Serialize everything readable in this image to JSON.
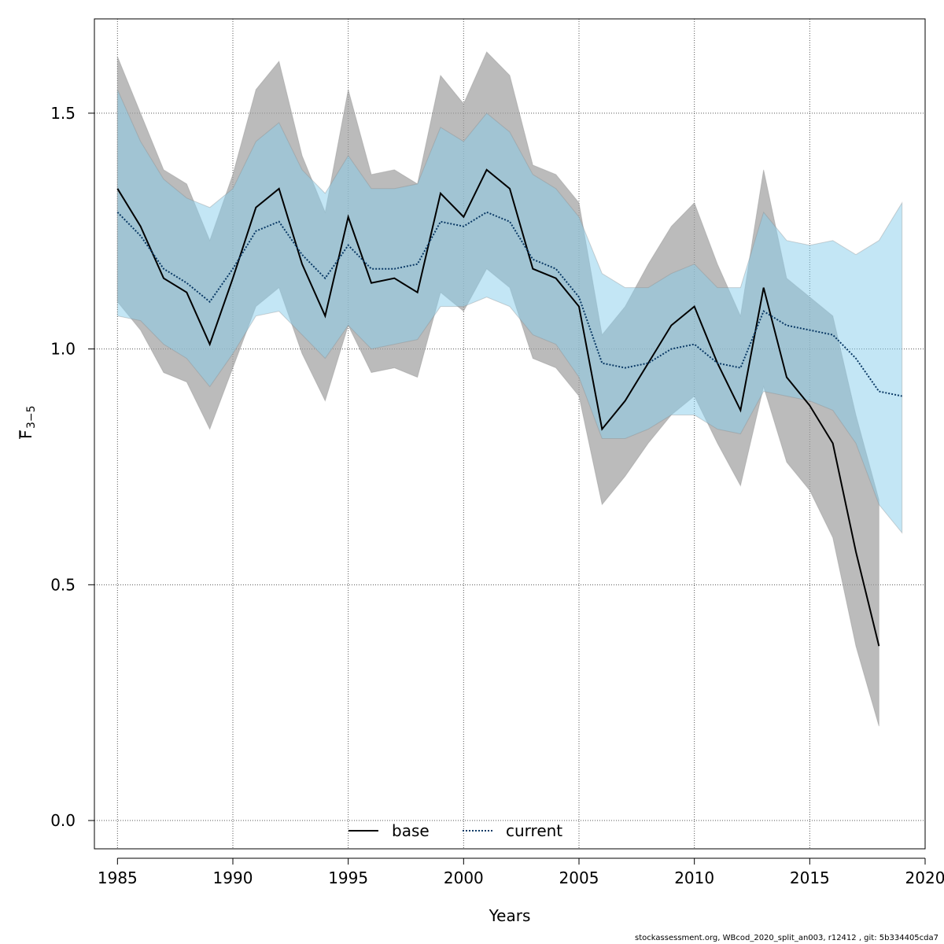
{
  "chart_data": {
    "type": "line",
    "xlabel": "Years",
    "ylabel": "F",
    "ylabel_sub": "3−5",
    "xlim": [
      1984,
      2020
    ],
    "ylim": [
      -0.06,
      1.7
    ],
    "x_ticks": [
      1985,
      1990,
      1995,
      2000,
      2005,
      2010,
      2015,
      2020
    ],
    "y_ticks": [
      0.0,
      0.5,
      1.0,
      1.5
    ],
    "y_tick_labels": [
      "0.0",
      "0.5",
      "1.0",
      "1.5"
    ],
    "grid": true,
    "legend_position": "bottom",
    "series": [
      {
        "name": "base",
        "style": "solid",
        "color": "#000000",
        "band_color": "#9e9e9e",
        "x": [
          1985,
          1986,
          1987,
          1988,
          1989,
          1990,
          1991,
          1992,
          1993,
          1994,
          1995,
          1996,
          1997,
          1998,
          1999,
          2000,
          2001,
          2002,
          2003,
          2004,
          2005,
          2006,
          2007,
          2008,
          2009,
          2010,
          2011,
          2012,
          2013,
          2014,
          2015,
          2016,
          2017,
          2018
        ],
        "values": [
          1.34,
          1.26,
          1.15,
          1.12,
          1.01,
          1.15,
          1.3,
          1.34,
          1.18,
          1.07,
          1.28,
          1.14,
          1.15,
          1.12,
          1.33,
          1.28,
          1.38,
          1.34,
          1.17,
          1.15,
          1.09,
          0.83,
          0.89,
          0.97,
          1.05,
          1.09,
          0.97,
          0.87,
          1.13,
          0.94,
          0.88,
          0.8,
          0.57,
          0.37
        ],
        "lower": [
          1.1,
          1.04,
          0.95,
          0.93,
          0.83,
          0.96,
          1.09,
          1.13,
          0.99,
          0.89,
          1.05,
          0.95,
          0.96,
          0.94,
          1.12,
          1.08,
          1.17,
          1.13,
          0.98,
          0.96,
          0.9,
          0.67,
          0.73,
          0.8,
          0.86,
          0.9,
          0.8,
          0.71,
          0.92,
          0.76,
          0.7,
          0.6,
          0.37,
          0.2
        ],
        "upper": [
          1.62,
          1.5,
          1.38,
          1.35,
          1.23,
          1.37,
          1.55,
          1.61,
          1.41,
          1.29,
          1.55,
          1.37,
          1.38,
          1.35,
          1.58,
          1.52,
          1.63,
          1.58,
          1.39,
          1.37,
          1.31,
          1.03,
          1.09,
          1.18,
          1.26,
          1.31,
          1.18,
          1.07,
          1.38,
          1.15,
          1.11,
          1.07,
          0.86,
          0.68
        ]
      },
      {
        "name": "current",
        "style": "dotted",
        "color": "#0b3a66",
        "band_color": "#87ceeb",
        "x": [
          1985,
          1986,
          1987,
          1988,
          1989,
          1990,
          1991,
          1992,
          1993,
          1994,
          1995,
          1996,
          1997,
          1998,
          1999,
          2000,
          2001,
          2002,
          2003,
          2004,
          2005,
          2006,
          2007,
          2008,
          2009,
          2010,
          2011,
          2012,
          2013,
          2014,
          2015,
          2016,
          2017,
          2018,
          2019
        ],
        "values": [
          1.29,
          1.24,
          1.17,
          1.14,
          1.1,
          1.17,
          1.25,
          1.27,
          1.2,
          1.15,
          1.22,
          1.17,
          1.17,
          1.18,
          1.27,
          1.26,
          1.29,
          1.27,
          1.19,
          1.17,
          1.11,
          0.97,
          0.96,
          0.97,
          1.0,
          1.01,
          0.97,
          0.96,
          1.08,
          1.05,
          1.04,
          1.03,
          0.98,
          0.91,
          0.9
        ],
        "lower": [
          1.07,
          1.06,
          1.01,
          0.98,
          0.92,
          0.99,
          1.07,
          1.08,
          1.03,
          0.98,
          1.05,
          1.0,
          1.01,
          1.02,
          1.09,
          1.09,
          1.11,
          1.09,
          1.03,
          1.01,
          0.94,
          0.81,
          0.81,
          0.83,
          0.86,
          0.86,
          0.83,
          0.82,
          0.91,
          0.9,
          0.89,
          0.87,
          0.8,
          0.67,
          0.61
        ],
        "upper": [
          1.55,
          1.44,
          1.36,
          1.32,
          1.3,
          1.34,
          1.44,
          1.48,
          1.38,
          1.33,
          1.41,
          1.34,
          1.34,
          1.35,
          1.47,
          1.44,
          1.5,
          1.46,
          1.37,
          1.34,
          1.28,
          1.16,
          1.13,
          1.13,
          1.16,
          1.18,
          1.13,
          1.13,
          1.29,
          1.23,
          1.22,
          1.23,
          1.2,
          1.23,
          1.31
        ]
      }
    ]
  },
  "footer": "stockassessment.org, WBcod_2020_split_an003, r12412 , git: 5b334405cda7"
}
